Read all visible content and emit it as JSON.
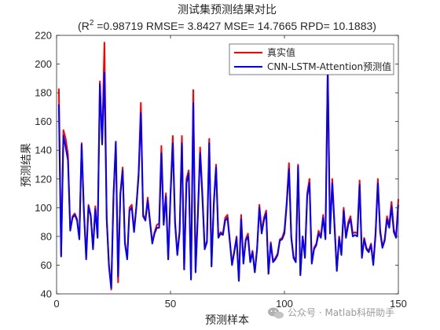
{
  "chart_data": {
    "type": "line",
    "title": "测试集预测结果对比",
    "subtitle_parts": [
      "(R",
      "2",
      " =0.98719 RMSE= 3.8427 MSE= 14.7665 RPD= 10.1883)"
    ],
    "xlabel": "预测样本",
    "ylabel": "预测结果",
    "xlim": [
      0,
      150
    ],
    "ylim": [
      40,
      220
    ],
    "xticks": [
      0,
      50,
      100,
      150
    ],
    "yticks": [
      40,
      60,
      80,
      100,
      120,
      140,
      160,
      180,
      200,
      220
    ],
    "grid": false,
    "legend_position": "top-right",
    "series": [
      {
        "name": "真实值",
        "color": "#ff0000",
        "x": [
          1,
          2,
          3,
          4,
          5,
          6,
          7,
          8,
          9,
          10,
          11,
          12,
          13,
          14,
          15,
          16,
          17,
          18,
          19,
          20,
          21,
          22,
          23,
          24,
          25,
          26,
          27,
          28,
          29,
          30,
          31,
          32,
          33,
          34,
          35,
          36,
          37,
          38,
          39,
          40,
          41,
          42,
          43,
          44,
          45,
          46,
          47,
          48,
          49,
          50,
          51,
          52,
          53,
          54,
          55,
          56,
          57,
          58,
          59,
          60,
          61,
          62,
          63,
          64,
          65,
          66,
          67,
          68,
          69,
          70,
          71,
          72,
          73,
          74,
          75,
          76,
          77,
          78,
          79,
          80,
          81,
          82,
          83,
          84,
          85,
          86,
          87,
          88,
          89,
          90,
          91,
          92,
          93,
          94,
          95,
          96,
          97,
          98,
          99,
          100,
          101,
          102,
          103,
          104,
          105,
          106,
          107,
          108,
          109,
          110,
          111,
          112,
          113,
          114,
          115,
          116,
          117,
          118,
          119,
          120,
          121,
          122,
          123,
          124,
          125,
          126,
          127,
          128,
          129,
          130,
          131,
          132,
          133,
          134,
          135,
          136,
          137,
          138,
          139,
          140,
          141,
          142,
          143,
          144,
          145,
          146,
          147,
          148,
          149,
          150
        ],
        "values": [
          183,
          67,
          154,
          148,
          137,
          85,
          94,
          96,
          92,
          78,
          145,
          98,
          66,
          102,
          95,
          72,
          101,
          80,
          188,
          146,
          215,
          93,
          60,
          43,
          110,
          145,
          48,
          110,
          128,
          76,
          65,
          100,
          102,
          84,
          101,
          124,
          173,
          95,
          92,
          107,
          91,
          76,
          83,
          88,
          89,
          143,
          90,
          110,
          64,
          110,
          150,
          91,
          68,
          84,
          150,
          57,
          120,
          126,
          50,
          182,
          56,
          96,
          142,
          110,
          72,
          77,
          148,
          60,
          104,
          130,
          80,
          83,
          82,
          93,
          95,
          78,
          61,
          70,
          80,
          50,
          95,
          62,
          78,
          82,
          63,
          70,
          55,
          72,
          102,
          84,
          93,
          98,
          54,
          76,
          63,
          65,
          68,
          78,
          79,
          84,
          104,
          131,
          80,
          66,
          63,
          130,
          53,
          80,
          66,
          110,
          120,
          62,
          72,
          75,
          84,
          80,
          95,
          79,
          200,
          84,
          120,
          88,
          56,
          80,
          68,
          100,
          80,
          90,
          94,
          82,
          83,
          82,
          119,
          66,
          79,
          72,
          70,
          75,
          61,
          83,
          120,
          85,
          73,
          78,
          94,
          88,
          104,
          85,
          80,
          106
        ]
      },
      {
        "name": "CNN-LSTM-Attention预测值",
        "color": "#0000ff",
        "x": [
          1,
          2,
          3,
          4,
          5,
          6,
          7,
          8,
          9,
          10,
          11,
          12,
          13,
          14,
          15,
          16,
          17,
          18,
          19,
          20,
          21,
          22,
          23,
          24,
          25,
          26,
          27,
          28,
          29,
          30,
          31,
          32,
          33,
          34,
          35,
          36,
          37,
          38,
          39,
          40,
          41,
          42,
          43,
          44,
          45,
          46,
          47,
          48,
          49,
          50,
          51,
          52,
          53,
          54,
          55,
          56,
          57,
          58,
          59,
          60,
          61,
          62,
          63,
          64,
          65,
          66,
          67,
          68,
          69,
          70,
          71,
          72,
          73,
          74,
          75,
          76,
          77,
          78,
          79,
          80,
          81,
          82,
          83,
          84,
          85,
          86,
          87,
          88,
          89,
          90,
          91,
          92,
          93,
          94,
          95,
          96,
          97,
          98,
          99,
          100,
          101,
          102,
          103,
          104,
          105,
          106,
          107,
          108,
          109,
          110,
          111,
          112,
          113,
          114,
          115,
          116,
          117,
          118,
          119,
          120,
          121,
          122,
          123,
          124,
          125,
          126,
          127,
          128,
          129,
          130,
          131,
          132,
          133,
          134,
          135,
          136,
          137,
          138,
          139,
          140,
          141,
          142,
          143,
          144,
          145,
          146,
          147,
          148,
          149,
          150
        ],
        "values": [
          172,
          66,
          150,
          142,
          133,
          84,
          93,
          95,
          91,
          78,
          144,
          97,
          64,
          101,
          94,
          71,
          99,
          79,
          186,
          144,
          194,
          92,
          59,
          44,
          108,
          146,
          52,
          109,
          126,
          75,
          64,
          98,
          100,
          83,
          100,
          122,
          166,
          94,
          91,
          105,
          90,
          75,
          82,
          86,
          86,
          138,
          88,
          108,
          64,
          108,
          145,
          89,
          67,
          83,
          145,
          57,
          117,
          124,
          50,
          173,
          55,
          94,
          138,
          107,
          71,
          76,
          145,
          59,
          102,
          128,
          79,
          82,
          81,
          91,
          93,
          77,
          60,
          69,
          79,
          49,
          92,
          61,
          77,
          80,
          62,
          69,
          55,
          71,
          100,
          82,
          91,
          96,
          54,
          75,
          62,
          64,
          67,
          77,
          78,
          82,
          102,
          127,
          79,
          65,
          62,
          129,
          53,
          80,
          65,
          108,
          117,
          61,
          71,
          74,
          82,
          79,
          93,
          78,
          195,
          82,
          117,
          86,
          56,
          79,
          67,
          98,
          79,
          88,
          92,
          80,
          81,
          80,
          116,
          65,
          78,
          71,
          69,
          74,
          60,
          81,
          117,
          83,
          72,
          77,
          92,
          86,
          101,
          83,
          79,
          102
        ]
      }
    ]
  },
  "watermark": {
    "prefix": "公众号 · ",
    "brand": "Matlab科研助手",
    "icon": "wechat-icon",
    "color": "#9a9a9a"
  }
}
